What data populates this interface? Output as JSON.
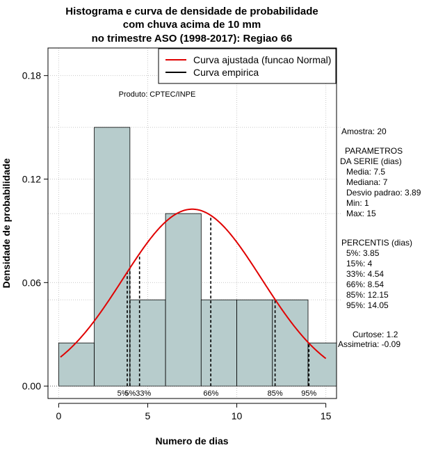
{
  "chart_data": {
    "type": "bar",
    "title_lines": [
      "Histograma e curva de densidade de probabilidade",
      "com chuva acima de 10 mm",
      "no trimestre ASO (1998-2017): Regiao 66"
    ],
    "xlabel": "Numero de dias",
    "ylabel": "Densidade de probabilidade",
    "xlim": [
      -0.6,
      15.6
    ],
    "ylim": [
      -0.0072,
      0.196
    ],
    "x_ticks": [
      0,
      5,
      10,
      15
    ],
    "x_tick_labels": [
      "0",
      "5",
      "10",
      "15"
    ],
    "y_ticks": [
      0.0,
      0.06,
      0.12,
      0.18
    ],
    "y_tick_labels": [
      "0.00",
      "0.06",
      "0.12",
      "0.18"
    ],
    "grid": true,
    "histogram": {
      "bin_edges": [
        0,
        2,
        4,
        6,
        8,
        10,
        12,
        14,
        16
      ],
      "densities": [
        0.025,
        0.15,
        0.05,
        0.1,
        0.05,
        0.05,
        0.05,
        0.025
      ],
      "fill_color": "#b7cccc"
    },
    "fitted_curve": {
      "name": "Curva ajustada (funcao Normal)",
      "distribution": "normal",
      "mean": 7.5,
      "sd": 3.89,
      "x_range": [
        0.1,
        15
      ],
      "color": "#e00000"
    },
    "empirical_curve": {
      "name": "Curva empirica",
      "color": "#000000"
    },
    "legend_position": "top-right",
    "product_label": "Produto: CPTEC/INPE",
    "percentile_markers": [
      {
        "x": 3.85,
        "label": "5%"
      },
      {
        "x": 4.0,
        "label": "15%"
      },
      {
        "x": 4.54,
        "label": "33%"
      },
      {
        "x": 8.54,
        "label": "66%"
      },
      {
        "x": 12.15,
        "label": "85%"
      },
      {
        "x": 14.05,
        "label": "95%"
      }
    ],
    "percentile_label_text": [
      {
        "x": 3.6,
        "text": "5%"
      },
      {
        "x": 4.45,
        "text": "5%33%"
      },
      {
        "x": 8.55,
        "text": "66%"
      },
      {
        "x": 12.15,
        "text": "85%"
      },
      {
        "x": 14.05,
        "text": "95%"
      }
    ],
    "reference_hlines": [
      0.15,
      0.1,
      0.05
    ]
  },
  "stats": {
    "amostra": "Amostra: 20",
    "parametros_title": "PARAMETROS",
    "parametros_subtitle": "DA SERIE (dias)",
    "parametros": [
      "Media: 7.5",
      "Mediana: 7",
      "Desvio padrao: 3.89",
      "Min: 1",
      "Max: 15"
    ],
    "percentis_title": "PERCENTIS (dias)",
    "percentis": [
      "5%: 3.85",
      "15%: 4",
      "33%: 4.54",
      "66%: 8.54",
      "85%: 12.15",
      "95%: 14.05"
    ],
    "curtose": "Curtose: 1.2",
    "assimetria": "Assimetria: -0.09"
  }
}
